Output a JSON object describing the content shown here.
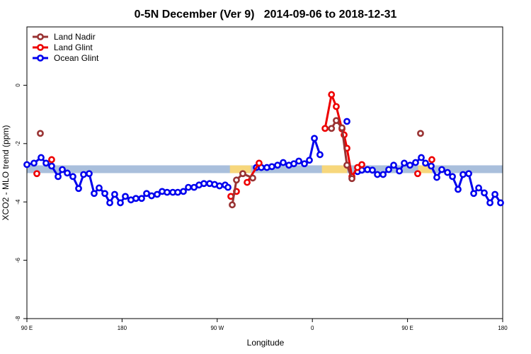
{
  "chart_data": {
    "type": "line",
    "title": "0-5N December (Ver 9)   2014-09-06 to 2018-12-31",
    "x_label": "Longitude",
    "y_label": "XCO2 - MLO trend (ppm)",
    "xlim": [
      90,
      540
    ],
    "ylim": [
      -8,
      2
    ],
    "xticks": [
      {
        "value": 90,
        "label": "90 E"
      },
      180,
      {
        "value": 270,
        "label": "90 W"
      },
      {
        "value": 360,
        "label": "0"
      },
      {
        "value": 450,
        "label": "90 E"
      },
      {
        "value": 540,
        "label": "180"
      }
    ],
    "yticks": [
      0,
      -2,
      -4,
      -6,
      -8
    ],
    "legend": "top-left",
    "reference_band": {
      "value": -2.88,
      "color": "#a9bfdc",
      "highlights": [
        [
          282,
          302
        ],
        [
          369,
          393
        ],
        [
          460,
          473
        ]
      ],
      "highlight_color": "#f7d77c"
    },
    "series": [
      {
        "name": "Land Nadir",
        "color": "#993333",
        "x": [
          102.7,
          null,
          284.2,
          288.2,
          294.2,
          303.6,
          null,
          378.1,
          382.6,
          388.0,
          392.7,
          397.4,
          null,
          462.3
        ],
        "values": [
          -1.65,
          null,
          -4.1,
          -3.25,
          -3.03,
          -3.18,
          null,
          -1.48,
          -1.21,
          -1.46,
          -2.74,
          -3.2,
          null,
          -1.65
        ]
      },
      {
        "name": "Land Glint",
        "color": "#ee0000",
        "x": [
          99.4,
          null,
          113.4,
          null,
          282.9,
          288.2,
          null,
          298.3,
          309.6,
          null,
          372.0,
          378.1,
          382.6,
          388.0,
          390.0,
          392.7,
          397.4,
          402.7,
          406.8,
          null,
          459.6,
          null,
          473.0
        ],
        "values": [
          -3.03,
          null,
          -2.55,
          null,
          -3.81,
          -3.64,
          null,
          -3.33,
          -2.67,
          null,
          -1.48,
          -0.32,
          -0.73,
          -1.5,
          -1.7,
          -2.16,
          -3.13,
          -2.82,
          -2.72,
          null,
          -3.03,
          null,
          -2.55
        ]
      },
      {
        "name": "Ocean Glint",
        "color": "#0000ee",
        "x": [
          90,
          96.7,
          103.4,
          108.1,
          113.4,
          119.5,
          123.5,
          128.2,
          133.5,
          138.9,
          143.6,
          148.9,
          153.6,
          158.3,
          163.7,
          168.4,
          173.0,
          178.4,
          183.1,
          188.4,
          193.1,
          198.5,
          203.2,
          207.9,
          213.2,
          217.9,
          222.6,
          228.0,
          232.7,
          238.0,
          242.7,
          248.1,
          252.8,
          257.4,
          262.8,
          267.5,
          272.2,
          277.5,
          280.2,
          null,
          307.0,
          311.7,
          317.0,
          321.7,
          327.1,
          332.4,
          337.8,
          342.5,
          347.2,
          352.5,
          357.2,
          361.9,
          367.2,
          null,
          392.7,
          null,
          402.7,
          406.8,
          412.1,
          416.8,
          421.5,
          426.9,
          432.2,
          436.9,
          442.3,
          446.9,
          452.3,
          457.6,
          463.0,
          467.0,
          472.4,
          477.7,
          482.4,
          487.8,
          492.5,
          497.8,
          502.5,
          507.9,
          512.6,
          517.3,
          522.6,
          528.0,
          532.7,
          538.0
        ],
        "values": [
          -2.72,
          -2.67,
          -2.48,
          -2.67,
          -2.77,
          -3.13,
          -2.89,
          -3.01,
          -3.13,
          -3.54,
          -3.06,
          -3.03,
          -3.71,
          -3.52,
          -3.71,
          -4.03,
          -3.74,
          -4.03,
          -3.81,
          -3.93,
          -3.88,
          -3.88,
          -3.71,
          -3.79,
          -3.74,
          -3.64,
          -3.67,
          -3.67,
          -3.67,
          -3.64,
          -3.5,
          -3.5,
          -3.42,
          -3.37,
          -3.37,
          -3.4,
          -3.45,
          -3.42,
          -3.5,
          null,
          -2.82,
          -2.82,
          -2.82,
          -2.79,
          -2.74,
          -2.65,
          -2.74,
          -2.69,
          -2.6,
          -2.69,
          -2.57,
          -1.82,
          -2.38,
          null,
          -1.24,
          null,
          -2.96,
          -2.91,
          -2.89,
          -2.91,
          -3.06,
          -3.06,
          -2.89,
          -2.74,
          -2.94,
          -2.67,
          -2.74,
          -2.65,
          -2.48,
          -2.67,
          -2.77,
          -3.16,
          -2.89,
          -2.99,
          -3.13,
          -3.57,
          -3.06,
          -3.03,
          -3.71,
          -3.52,
          -3.69,
          -4.03,
          -3.74,
          -4.03
        ]
      }
    ]
  }
}
